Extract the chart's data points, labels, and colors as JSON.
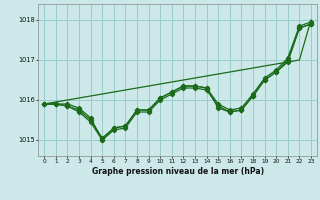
{
  "background_color": "#cce8e8",
  "grid_color": "#99cccc",
  "line_color": "#1a6b1a",
  "xlabel": "Graphe pression niveau de la mer (hPa)",
  "xlim": [
    -0.5,
    23.5
  ],
  "ylim": [
    1014.6,
    1018.4
  ],
  "yticks": [
    1015,
    1016,
    1017,
    1018
  ],
  "xticks": [
    0,
    1,
    2,
    3,
    4,
    5,
    6,
    7,
    8,
    9,
    10,
    11,
    12,
    13,
    14,
    15,
    16,
    17,
    18,
    19,
    20,
    21,
    22,
    23
  ],
  "series_wavy": [
    [
      1015.9,
      1015.9,
      1015.9,
      1015.8,
      1015.55,
      1015.0,
      1015.3,
      1015.35,
      1015.75,
      1015.75,
      1016.05,
      1016.2,
      1016.35,
      1016.35,
      1016.3,
      1015.8,
      1015.7,
      1015.75,
      1016.1,
      1016.5,
      1016.7,
      1016.95,
      1017.8,
      1017.9
    ],
    [
      1015.9,
      1015.9,
      1015.85,
      1015.75,
      1015.5,
      1015.05,
      1015.3,
      1015.35,
      1015.75,
      1015.75,
      1016.05,
      1016.2,
      1016.35,
      1016.35,
      1016.3,
      1015.9,
      1015.75,
      1015.8,
      1016.15,
      1016.55,
      1016.75,
      1017.05,
      1017.85,
      1017.95
    ],
    [
      1015.9,
      1015.9,
      1015.85,
      1015.7,
      1015.45,
      1015.0,
      1015.25,
      1015.3,
      1015.7,
      1015.7,
      1016.0,
      1016.15,
      1016.3,
      1016.3,
      1016.25,
      1015.85,
      1015.7,
      1015.75,
      1016.1,
      1016.5,
      1016.7,
      1017.0,
      1017.8,
      1017.9
    ]
  ],
  "series_straight": [
    [
      1015.9,
      1015.95,
      1016.0,
      1016.05,
      1016.1,
      1016.15,
      1016.2,
      1016.25,
      1016.3,
      1016.35,
      1016.4,
      1016.45,
      1016.5,
      1016.55,
      1016.6,
      1016.65,
      1016.7,
      1016.75,
      1016.8,
      1016.85,
      1016.9,
      1016.95,
      1017.0,
      1018.0
    ]
  ]
}
